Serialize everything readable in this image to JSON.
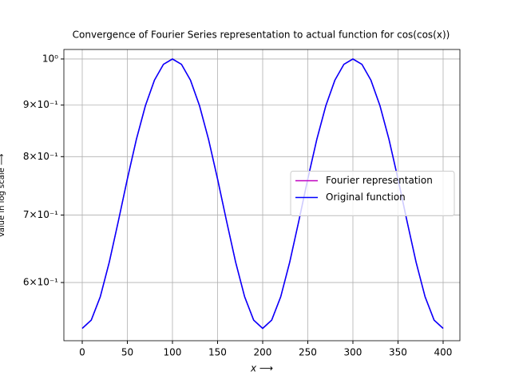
{
  "chart_data": {
    "type": "line",
    "title": "Convergence of Fourier Series representation to actual function for cos(cos(x))",
    "xlabel": "x ⟶",
    "ylabel": "Value in log scale ⟶",
    "x": [
      0,
      10,
      20,
      30,
      40,
      50,
      60,
      70,
      80,
      90,
      100,
      110,
      120,
      130,
      140,
      150,
      160,
      170,
      180,
      190,
      200,
      210,
      220,
      230,
      240,
      250,
      260,
      270,
      280,
      290,
      300,
      310,
      320,
      330,
      340,
      350,
      360,
      370,
      380,
      390,
      400
    ],
    "series": [
      {
        "name": "Fourier representation",
        "color": "#bf00bf",
        "values": [
          0.5403,
          0.5506,
          0.5808,
          0.6287,
          0.6902,
          0.7602,
          0.8322,
          0.8987,
          0.9526,
          0.9878,
          1.0,
          0.9878,
          0.9526,
          0.8987,
          0.8322,
          0.7602,
          0.6902,
          0.6287,
          0.5808,
          0.5506,
          0.5403,
          0.5506,
          0.5808,
          0.6287,
          0.6902,
          0.7602,
          0.8322,
          0.8987,
          0.9526,
          0.9878,
          1.0,
          0.9878,
          0.9526,
          0.8987,
          0.8322,
          0.7602,
          0.6902,
          0.6287,
          0.5808,
          0.5506,
          0.5403
        ]
      },
      {
        "name": "Original function",
        "color": "#0000ff",
        "values": [
          0.5403,
          0.5506,
          0.5808,
          0.6287,
          0.6902,
          0.7602,
          0.8322,
          0.8987,
          0.9526,
          0.9878,
          1.0,
          0.9878,
          0.9526,
          0.8987,
          0.8322,
          0.7602,
          0.6902,
          0.6287,
          0.5808,
          0.5506,
          0.5403,
          0.5506,
          0.5808,
          0.6287,
          0.6902,
          0.7602,
          0.8322,
          0.8987,
          0.9526,
          0.9878,
          1.0,
          0.9878,
          0.9526,
          0.8987,
          0.8322,
          0.7602,
          0.6902,
          0.6287,
          0.5808,
          0.5506,
          0.5403
        ]
      }
    ],
    "xlim": [
      -20.35,
      418.6
    ],
    "ylim": [
      0.5253,
      1.022
    ],
    "yscale": "log",
    "xticks": [
      0,
      50,
      100,
      150,
      200,
      250,
      300,
      350,
      400
    ],
    "yticks": [
      {
        "value": 0.6,
        "label": "6×10⁻¹"
      },
      {
        "value": 0.7,
        "label": "7×10⁻¹"
      },
      {
        "value": 0.8,
        "label": "8×10⁻¹"
      },
      {
        "value": 0.9,
        "label": "9×10⁻¹"
      },
      {
        "value": 1,
        "label": "10⁰"
      }
    ],
    "grid": true,
    "legend": "center right"
  }
}
